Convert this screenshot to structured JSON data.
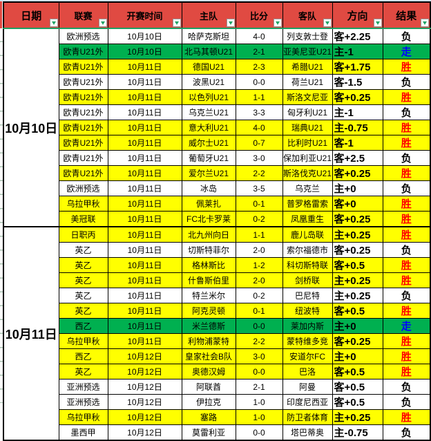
{
  "colors": {
    "header_bg": "#e04a42",
    "header_underline": "#1f9d61",
    "filter_green": "#21a366",
    "row_yellow": "#ffff00",
    "row_green": "#00b050",
    "result_win": "#ff0000",
    "result_loss": "#000000",
    "result_push": "#0000ff"
  },
  "result_colors": {
    "胜": "#ff0000",
    "负": "#000000",
    "走": "#0000ff"
  },
  "table": {
    "columns": [
      {
        "key": "date",
        "label": "日期"
      },
      {
        "key": "league",
        "label": "联赛"
      },
      {
        "key": "time",
        "label": "开赛时间"
      },
      {
        "key": "home",
        "label": "主队"
      },
      {
        "key": "score",
        "label": "比分"
      },
      {
        "key": "away",
        "label": "客队"
      },
      {
        "key": "direction",
        "label": "方向"
      },
      {
        "key": "result",
        "label": "结果"
      }
    ],
    "groups": [
      {
        "date": "10月10日",
        "rows": [
          {
            "league": "欧洲预选",
            "time": "10月10日",
            "home": "哈萨克斯坦",
            "score": "4-0",
            "away": "列支敦士登",
            "direction": "客+2.25",
            "result": "负",
            "bg": "white"
          },
          {
            "league": "欧青U21外",
            "time": "10月10日",
            "home": "北马其顿U21",
            "score": "2-1",
            "away": "亚美尼亚U21",
            "direction": "主-1",
            "result": "走",
            "bg": "green"
          },
          {
            "league": "欧青U21外",
            "time": "10月11日",
            "home": "德国U21",
            "score": "2-3",
            "away": "希腊U21",
            "direction": "客+1.75",
            "result": "胜",
            "bg": "yellow"
          },
          {
            "league": "欧青U21外",
            "time": "10月11日",
            "home": "波黑U21",
            "score": "0-0",
            "away": "荷兰U21",
            "direction": "客-1.5",
            "result": "负",
            "bg": "white"
          },
          {
            "league": "欧青U21外",
            "time": "10月11日",
            "home": "以色列U21",
            "score": "1-1",
            "away": "斯洛文尼亚",
            "direction": "客+0.25",
            "result": "胜",
            "bg": "yellow"
          },
          {
            "league": "欧青U21外",
            "time": "10月11日",
            "home": "乌克兰U21",
            "score": "3-3",
            "away": "匈牙利U21",
            "direction": "主-1",
            "result": "负",
            "bg": "white"
          },
          {
            "league": "欧青U21外",
            "time": "10月11日",
            "home": "意大利U21",
            "score": "4-0",
            "away": "瑞典U21",
            "direction": "主-0.75",
            "result": "胜",
            "bg": "yellow"
          },
          {
            "league": "欧青U21外",
            "time": "10月11日",
            "home": "威尔士U21",
            "score": "0-7",
            "away": "比利时U21",
            "direction": "客-1",
            "result": "胜",
            "bg": "yellow"
          },
          {
            "league": "欧青U21外",
            "time": "10月11日",
            "home": "葡萄牙U21",
            "score": "3-0",
            "away": "保加利亚U21",
            "direction": "客+2.5",
            "result": "负",
            "bg": "white"
          },
          {
            "league": "欧青U21外",
            "time": "10月11日",
            "home": "爱尔兰U21",
            "score": "2-2",
            "away": "斯洛伐克U21",
            "direction": "客+0.25",
            "result": "胜",
            "bg": "yellow"
          },
          {
            "league": "欧洲预选",
            "time": "10月11日",
            "home": "冰岛",
            "score": "3-5",
            "away": "乌克兰",
            "direction": "主+0",
            "result": "负",
            "bg": "white"
          },
          {
            "league": "乌拉甲秋",
            "time": "10月11日",
            "home": "佩莱扎",
            "score": "0-1",
            "away": "普罗格雷索",
            "direction": "客+0",
            "result": "胜",
            "bg": "yellow"
          },
          {
            "league": "美冠联",
            "time": "10月11日",
            "home": "FC北卡罗莱",
            "score": "0-2",
            "away": "凤凰重生",
            "direction": "客+0.25",
            "result": "胜",
            "bg": "yellow"
          }
        ]
      },
      {
        "date": "10月11日",
        "rows": [
          {
            "league": "日职丙",
            "time": "10月11日",
            "home": "北九州向日",
            "score": "1-1",
            "away": "鹿儿岛联",
            "direction": "主+0.25",
            "result": "胜",
            "bg": "yellow"
          },
          {
            "league": "英乙",
            "time": "10月11日",
            "home": "切斯特菲尔",
            "score": "2-0",
            "away": "索尔福德市",
            "direction": "客+0.25",
            "result": "负",
            "bg": "white"
          },
          {
            "league": "英乙",
            "time": "10月11日",
            "home": "格林斯比",
            "score": "1-2",
            "away": "科切斯特联",
            "direction": "客+0.5",
            "result": "胜",
            "bg": "yellow"
          },
          {
            "league": "英乙",
            "time": "10月11日",
            "home": "什鲁斯伯里",
            "score": "2-0",
            "away": "剑桥联",
            "direction": "主+0.25",
            "result": "胜",
            "bg": "yellow"
          },
          {
            "league": "英乙",
            "time": "10月11日",
            "home": "特兰米尔",
            "score": "0-2",
            "away": "巴尼特",
            "direction": "主+0.25",
            "result": "负",
            "bg": "white"
          },
          {
            "league": "英乙",
            "time": "10月11日",
            "home": "阿克灵顿",
            "score": "0-1",
            "away": "纽波特",
            "direction": "客+0.5",
            "result": "胜",
            "bg": "yellow"
          },
          {
            "league": "西乙",
            "time": "10月11日",
            "home": "米兰德斯",
            "score": "0-0",
            "away": "莱加内斯",
            "direction": "主+0",
            "result": "走",
            "bg": "green"
          },
          {
            "league": "乌拉甲秋",
            "time": "10月11日",
            "home": "利物浦蒙特",
            "score": "2-2",
            "away": "蒙特维多竞",
            "direction": "客+0.25",
            "result": "胜",
            "bg": "yellow"
          },
          {
            "league": "西乙",
            "time": "10月12日",
            "home": "皇家社会B队",
            "score": "3-0",
            "away": "安道尔FC",
            "direction": "主+0",
            "result": "胜",
            "bg": "yellow"
          },
          {
            "league": "英乙",
            "time": "10月12日",
            "home": "奥德汉姆",
            "score": "0-0",
            "away": "巴洛",
            "direction": "客+0.5",
            "result": "胜",
            "bg": "yellow"
          },
          {
            "league": "亚洲预选",
            "time": "10月12日",
            "home": "阿联酋",
            "score": "2-1",
            "away": "阿曼",
            "direction": "客+0.5",
            "result": "负",
            "bg": "white"
          },
          {
            "league": "亚洲预选",
            "time": "10月12日",
            "home": "伊拉克",
            "score": "1-0",
            "away": "印度尼西亚",
            "direction": "客+0.5",
            "result": "负",
            "bg": "white"
          },
          {
            "league": "乌拉甲秋",
            "time": "10月12日",
            "home": "塞路",
            "score": "1-0",
            "away": "防卫者体育",
            "direction": "主+0.25",
            "result": "胜",
            "bg": "yellow"
          },
          {
            "league": "墨西甲",
            "time": "10月12日",
            "home": "莫雷利亚",
            "score": "0-0",
            "away": "塔巴蒂奥",
            "direction": "主-0.75",
            "result": "负",
            "bg": "white"
          }
        ]
      }
    ]
  }
}
